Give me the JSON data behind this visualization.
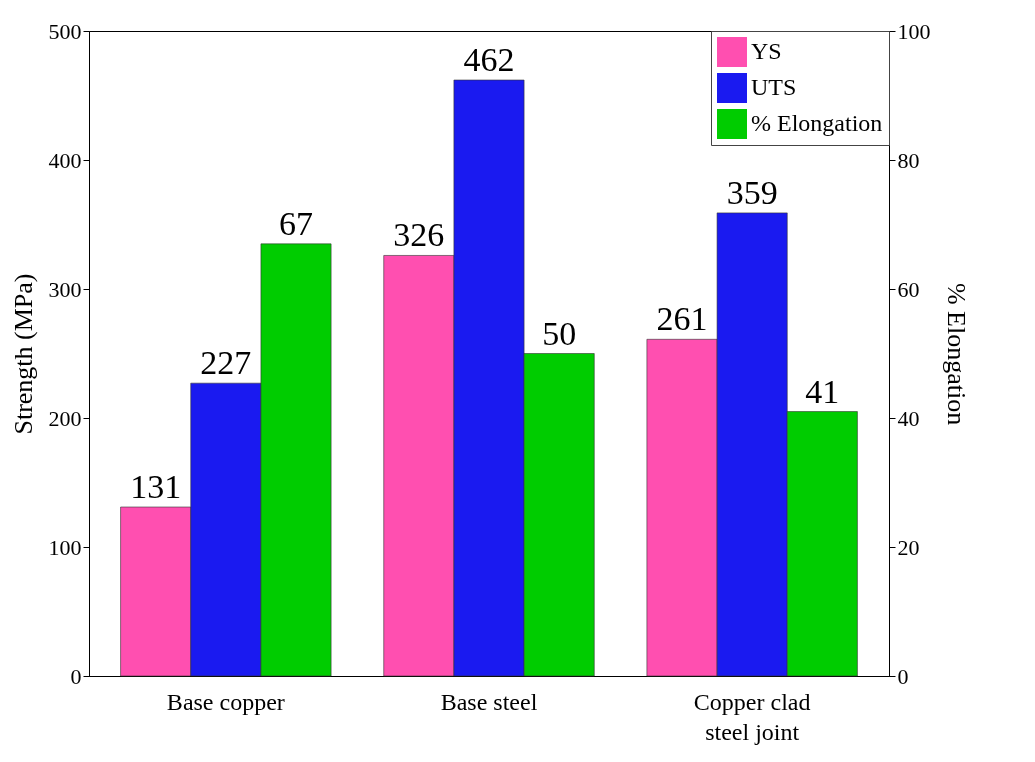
{
  "chart_data": {
    "type": "bar",
    "categories": [
      "Base copper",
      "Base steel",
      "Copper clad steel joint"
    ],
    "ylabel": "Strength (MPa)",
    "y2label": "% Elongation",
    "ylim": [
      0,
      500
    ],
    "yticks": [
      0,
      100,
      200,
      300,
      400,
      500
    ],
    "y2lim": [
      0,
      100
    ],
    "y2ticks": [
      0,
      20,
      40,
      60,
      80,
      100
    ],
    "series": [
      {
        "name": "YS",
        "color": "#ff4fb0",
        "values": [
          131,
          326,
          261
        ]
      },
      {
        "name": "UTS",
        "color": "#1a1af0",
        "values": [
          227,
          462,
          359
        ]
      },
      {
        "name": "% Elongation",
        "color": "#00cc00",
        "values": [
          67,
          50,
          41
        ],
        "axis": "y2"
      }
    ],
    "data_labels": true,
    "legend": "top right",
    "grid": false
  }
}
